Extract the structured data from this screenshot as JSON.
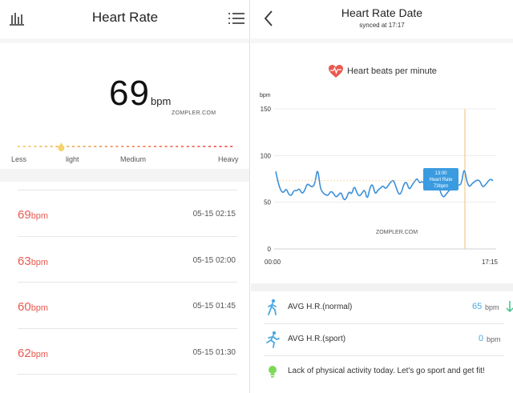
{
  "left": {
    "title": "Heart Rate",
    "current": {
      "value": "69",
      "unit": "bpm"
    },
    "watermark": "ZOMPLER.COM",
    "scale": {
      "labels": [
        "Less",
        "light",
        "Medium",
        "Heavy"
      ],
      "marker_fraction": 0.2
    },
    "records": [
      {
        "value": "69",
        "unit": "bpm",
        "time": "05-15 02:15"
      },
      {
        "value": "63",
        "unit": "bpm",
        "time": "05-15 02:00"
      },
      {
        "value": "60",
        "unit": "bpm",
        "time": "05-15 01:45"
      },
      {
        "value": "62",
        "unit": "bpm",
        "time": "05-15 01:30"
      }
    ],
    "icons": {
      "stats": "bar-chart-icon",
      "menu": "menu-icon"
    }
  },
  "right": {
    "title": "Heart Rate Date",
    "subtitle": "synced at 17:17",
    "legend": "Heart beats per minute",
    "watermark": "ZOMPLER.COM",
    "stats": [
      {
        "label": "AVG H.R.(normal)",
        "value": "65",
        "unit": "bpm",
        "icon": "walking-icon",
        "trend": "down-arrow-icon"
      },
      {
        "label": "AVG H.R.(sport)",
        "value": "0",
        "unit": "bpm",
        "icon": "running-icon"
      }
    ],
    "tip": "Lack of physical activity today. Let's go sport and get fit!",
    "colors": {
      "line": "#3b8fd9",
      "marker": "#f0c274",
      "heart": "#e85a50",
      "accent": "#4aa8e0",
      "trend": "#3fbf8a"
    }
  },
  "chart_data": {
    "type": "line",
    "ylabel": "bpm",
    "ylim": [
      0,
      150
    ],
    "yticks": [
      "150",
      "100",
      "50",
      "0"
    ],
    "xticks": [
      "00:00",
      "17:15"
    ],
    "tooltip": {
      "time": "13:00",
      "label": "Heart Rate",
      "value": "73bpm"
    },
    "series": [
      {
        "values": [
          83,
          70,
          62,
          60,
          65,
          58,
          57,
          63,
          62,
          65,
          59,
          62,
          70,
          68,
          66,
          70,
          88,
          65,
          60,
          58,
          57,
          62,
          60,
          55,
          58,
          61,
          52,
          54,
          62,
          58,
          68,
          60,
          56,
          60,
          64,
          52,
          66,
          70,
          58,
          63,
          65,
          68,
          64,
          68,
          72,
          74,
          66,
          58,
          60,
          70,
          72,
          63,
          68,
          72,
          76,
          70,
          73,
          68,
          66,
          67,
          70,
          65,
          72,
          60,
          55,
          58,
          62,
          64,
          78,
          70,
          68,
          70,
          88,
          72,
          66,
          70,
          72,
          74,
          73,
          66,
          68,
          72,
          75,
          73
        ]
      }
    ]
  }
}
